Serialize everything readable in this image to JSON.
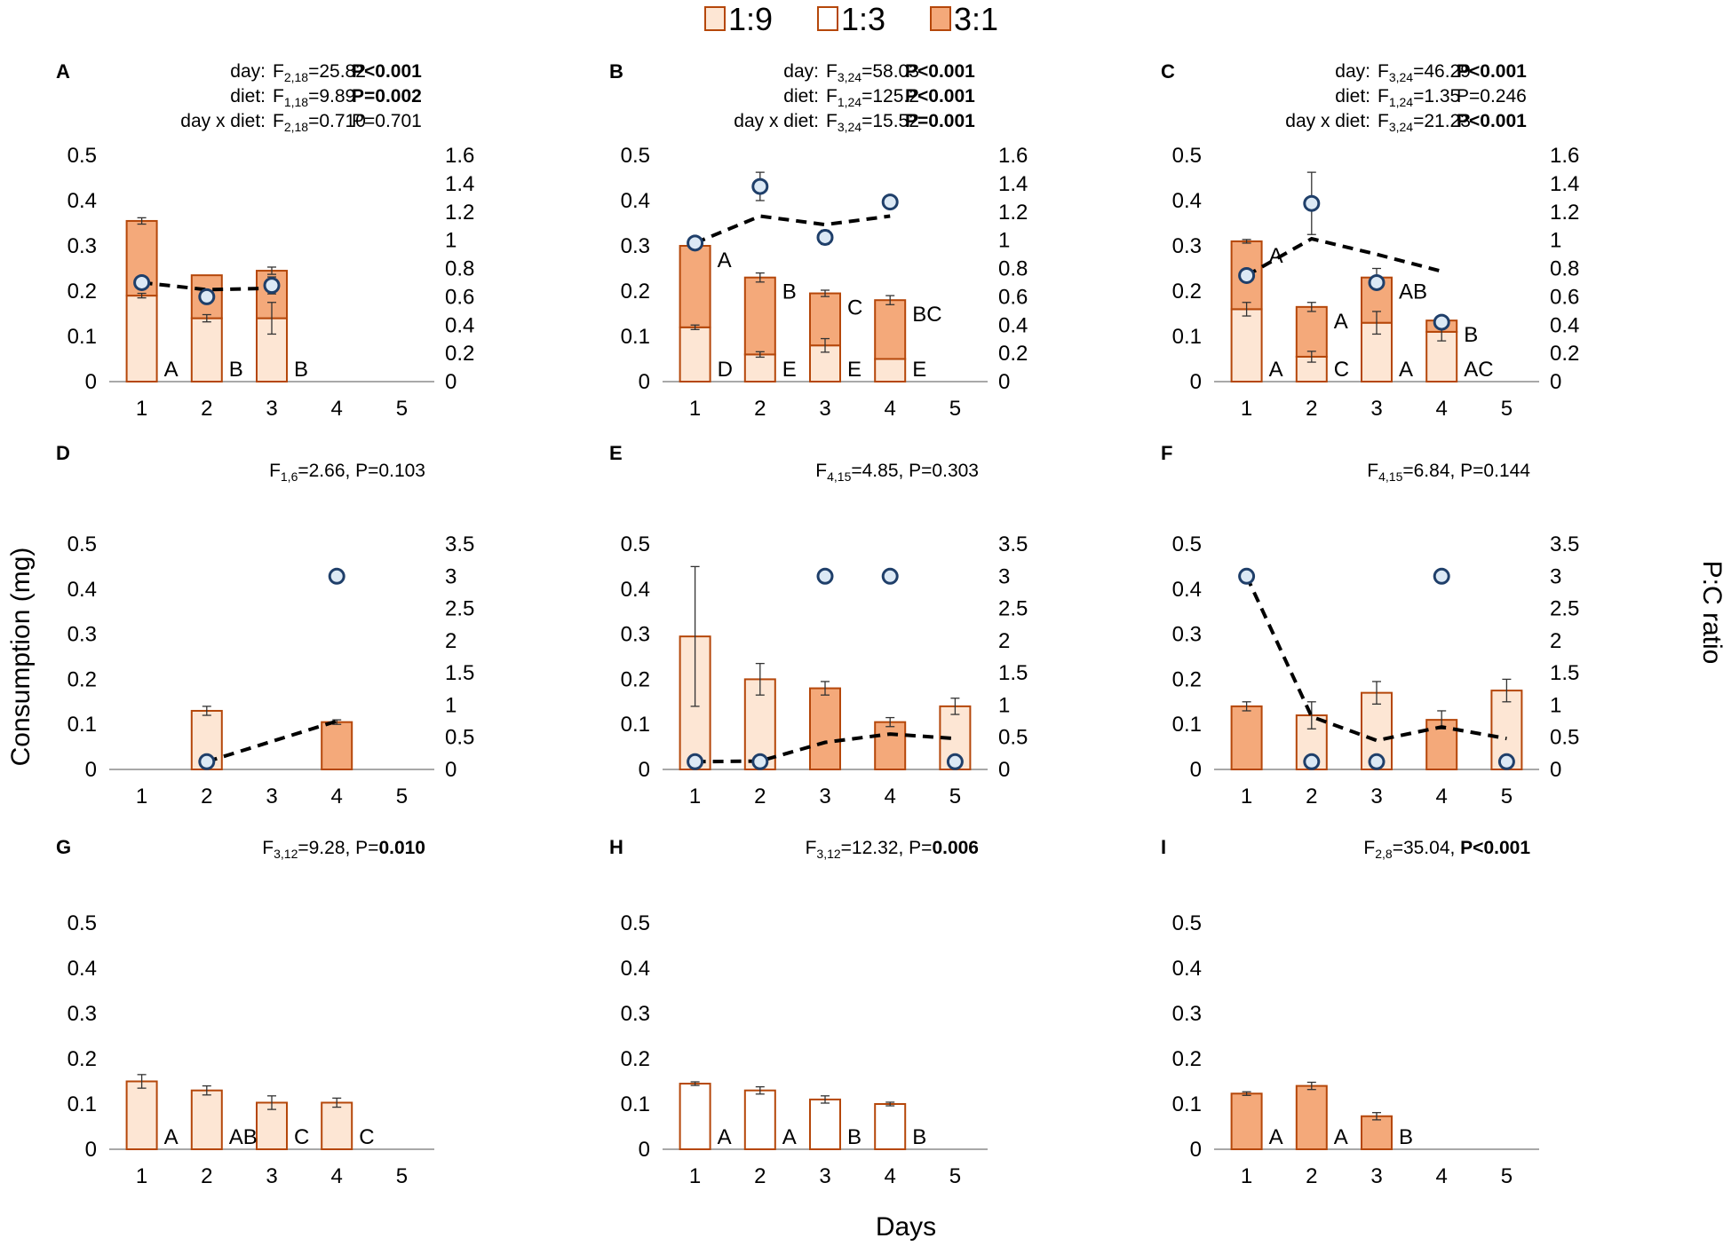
{
  "figure": {
    "legend": [
      {
        "label": "1:9",
        "fill": "#fde6d4"
      },
      {
        "label": "1:3",
        "fill": "#ffffff"
      },
      {
        "label": "3:1",
        "fill": "#f4a97a"
      }
    ],
    "y_axis_title": "Consumption  (mg)",
    "y2_axis_title": "P:C ratio",
    "x_axis_title": "Days",
    "colors": {
      "edge": "#b5470a",
      "line": "#000000",
      "marker_fill": "#dce9f5",
      "marker_edge": "#1f3f6a"
    }
  },
  "chart_data": [
    {
      "panel": "A",
      "type": "stacked-bar+line",
      "categories": [
        "1",
        "2",
        "3",
        "4",
        "5"
      ],
      "ylim": [
        0,
        0.5
      ],
      "yticks": [
        "0",
        "0.1",
        "0.2",
        "0.3",
        "0.4",
        "0.5"
      ],
      "y2lim": [
        0,
        1.6
      ],
      "y2ticks": [
        "0",
        "0.2",
        "0.4",
        "0.6",
        "0.8",
        "1",
        "1.2",
        "1.4",
        "1.6"
      ],
      "series": [
        {
          "name": "1:9",
          "values": [
            0.19,
            0.14,
            0.14,
            null,
            null
          ],
          "errors": [
            0.005,
            0.008,
            0.035,
            null,
            null
          ],
          "fill": "#fde6d4"
        },
        {
          "name": "3:1",
          "values": [
            0.165,
            0.095,
            0.105,
            null,
            null
          ],
          "errors": [
            0.007,
            0,
            0.008,
            null,
            null
          ],
          "fill": "#f4a97a"
        }
      ],
      "bar_letters": [
        [
          "A",
          "B",
          "B",
          null,
          null
        ]
      ],
      "pc_ratio": {
        "line": [
          0.7,
          0.65,
          0.66,
          null,
          null
        ],
        "points": [
          0.7,
          0.6,
          0.68,
          null,
          null
        ],
        "errors": [
          0,
          0,
          0.06,
          null,
          null
        ]
      },
      "stats": [
        {
          "label": "day:",
          "F": "F",
          "sub": "2,18",
          "value": "=25.82",
          "p": "P<0.001",
          "bold": true
        },
        {
          "label": "diet:",
          "F": "F",
          "sub": "1,18",
          "value": "=9.89",
          "p": "P=0.002",
          "bold": true
        },
        {
          "label": "day x diet:",
          "F": "F",
          "sub": "2,18",
          "value": "=0.710",
          "p": "P=0.701",
          "bold": false
        }
      ]
    },
    {
      "panel": "B",
      "type": "stacked-bar+line",
      "categories": [
        "1",
        "2",
        "3",
        "4",
        "5"
      ],
      "ylim": [
        0,
        0.5
      ],
      "yticks": [
        "0",
        "0.1",
        "0.2",
        "0.3",
        "0.4",
        "0.5"
      ],
      "y2lim": [
        0,
        1.6
      ],
      "y2ticks": [
        "0",
        "0.2",
        "0.4",
        "0.6",
        "0.8",
        "1",
        "1.2",
        "1.4",
        "1.6"
      ],
      "series": [
        {
          "name": "1:9",
          "values": [
            0.12,
            0.06,
            0.08,
            0.05,
            null
          ],
          "errors": [
            0.005,
            0.006,
            0.015,
            0,
            null
          ],
          "fill": "#fde6d4"
        },
        {
          "name": "3:1",
          "values": [
            0.18,
            0.17,
            0.115,
            0.13,
            null
          ],
          "errors": [
            0,
            0.01,
            0.007,
            0.01,
            null
          ],
          "fill": "#f4a97a"
        }
      ],
      "bar_letters": [
        [
          "D",
          "E",
          "E",
          "E",
          null
        ],
        [
          "A",
          "B",
          "C",
          "BC",
          null
        ]
      ],
      "pc_ratio": {
        "line": [
          0.98,
          1.17,
          1.11,
          1.17,
          null
        ],
        "points": [
          0.98,
          1.38,
          1.02,
          1.27,
          null
        ],
        "errors": [
          0,
          0.1,
          0.05,
          0,
          null
        ]
      },
      "stats": [
        {
          "label": "day:",
          "F": "F",
          "sub": "3,24",
          "value": "=58.03",
          "p": "P<0.001",
          "bold": true
        },
        {
          "label": "diet:",
          "F": "F",
          "sub": "1,24",
          "value": "=125.2",
          "p": "P<0.001",
          "bold": true
        },
        {
          "label": "day x diet:",
          "F": "F",
          "sub": "3,24",
          "value": "=15.52",
          "p": "P=0.001",
          "bold": true
        }
      ]
    },
    {
      "panel": "C",
      "type": "stacked-bar+line",
      "categories": [
        "1",
        "2",
        "3",
        "4",
        "5"
      ],
      "ylim": [
        0,
        0.5
      ],
      "yticks": [
        "0",
        "0.1",
        "0.2",
        "0.3",
        "0.4",
        "0.5"
      ],
      "y2lim": [
        0,
        1.6
      ],
      "y2ticks": [
        "0",
        "0.2",
        "0.4",
        "0.6",
        "0.8",
        "1",
        "1.2",
        "1.4",
        "1.6"
      ],
      "series": [
        {
          "name": "1:9",
          "values": [
            0.16,
            0.055,
            0.13,
            0.11,
            null
          ],
          "errors": [
            0.015,
            0.012,
            0.025,
            0.02,
            null
          ],
          "fill": "#fde6d4"
        },
        {
          "name": "3:1",
          "values": [
            0.15,
            0.11,
            0.1,
            0.025,
            null
          ],
          "errors": [
            0.004,
            0.01,
            0.02,
            0.005,
            null
          ],
          "fill": "#f4a97a"
        }
      ],
      "bar_letters": [
        [
          "A",
          "C",
          "A",
          "AC",
          null
        ],
        [
          "A",
          "A",
          "AB",
          "B",
          null
        ]
      ],
      "pc_ratio": {
        "line": [
          0.75,
          1.01,
          0.9,
          0.78,
          null
        ],
        "points": [
          0.75,
          1.26,
          0.7,
          0.42,
          null
        ],
        "errors": [
          0,
          0.22,
          0,
          0,
          null
        ]
      },
      "stats": [
        {
          "label": "day:",
          "F": "F",
          "sub": "3,24",
          "value": "=46.29",
          "p": "P<0.001",
          "bold": true
        },
        {
          "label": "diet:",
          "F": "F",
          "sub": "1,24",
          "value": "=1.35",
          "p": "P=0.246",
          "bold": false
        },
        {
          "label": "day x diet:",
          "F": "F",
          "sub": "3,24",
          "value": "=21.23",
          "p": "P<0.001",
          "bold": true
        }
      ]
    },
    {
      "panel": "D",
      "type": "bar+line",
      "categories": [
        "1",
        "2",
        "3",
        "4",
        "5"
      ],
      "ylim": [
        0,
        0.5
      ],
      "yticks": [
        "0",
        "0.1",
        "0.2",
        "0.3",
        "0.4",
        "0.5"
      ],
      "y2lim": [
        0,
        3.5
      ],
      "y2ticks": [
        "0",
        "0.5",
        "1",
        "1.5",
        "2",
        "2.5",
        "3",
        "3.5"
      ],
      "bars": [
        {
          "value": null
        },
        {
          "value": 0.13,
          "error": 0.01,
          "fill": "#fde6d4"
        },
        {
          "value": null
        },
        {
          "value": 0.105,
          "error": 0.005,
          "fill": "#f4a97a"
        },
        {
          "value": null
        }
      ],
      "pc_ratio": {
        "line": [
          null,
          0.12,
          null,
          0.75,
          null
        ],
        "points": [
          null,
          0.12,
          null,
          3.0,
          null
        ],
        "errors": [
          null,
          0,
          null,
          0,
          null
        ]
      },
      "stats": [
        {
          "F": "F",
          "sub": "1,6",
          "value": "=2.66, P=0.103",
          "p": "",
          "bold": false
        }
      ]
    },
    {
      "panel": "E",
      "type": "bar+line",
      "categories": [
        "1",
        "2",
        "3",
        "4",
        "5"
      ],
      "ylim": [
        0,
        0.5
      ],
      "yticks": [
        "0",
        "0.1",
        "0.2",
        "0.3",
        "0.4",
        "0.5"
      ],
      "y2lim": [
        0,
        3.5
      ],
      "y2ticks": [
        "0",
        "0.5",
        "1",
        "1.5",
        "2",
        "2.5",
        "3",
        "3.5"
      ],
      "bars": [
        {
          "value": 0.295,
          "error": 0.155,
          "fill": "#fde6d4"
        },
        {
          "value": 0.2,
          "error": 0.035,
          "fill": "#fde6d4"
        },
        {
          "value": 0.18,
          "error": 0.015,
          "fill": "#f4a97a"
        },
        {
          "value": 0.105,
          "error": 0.01,
          "fill": "#f4a97a"
        },
        {
          "value": 0.14,
          "error": 0.018,
          "fill": "#fde6d4"
        }
      ],
      "pc_ratio": {
        "line": [
          0.12,
          0.13,
          0.42,
          0.55,
          0.48
        ],
        "points": [
          0.12,
          0.12,
          3.0,
          3.0,
          0.12
        ],
        "errors": [
          0,
          0,
          0,
          0,
          0
        ]
      },
      "stats": [
        {
          "F": "F",
          "sub": "4,15",
          "value": "=4.85, P=0.303",
          "p": "",
          "bold": false
        }
      ]
    },
    {
      "panel": "F",
      "type": "bar+line",
      "categories": [
        "1",
        "2",
        "3",
        "4",
        "5"
      ],
      "ylim": [
        0,
        0.5
      ],
      "yticks": [
        "0",
        "0.1",
        "0.2",
        "0.3",
        "0.4",
        "0.5"
      ],
      "y2lim": [
        0,
        3.5
      ],
      "y2ticks": [
        "0",
        "0.5",
        "1",
        "1.5",
        "2",
        "2.5",
        "3",
        "3.5"
      ],
      "bars": [
        {
          "value": 0.14,
          "error": 0.01,
          "fill": "#f4a97a"
        },
        {
          "value": 0.12,
          "error": 0.03,
          "fill": "#fde6d4"
        },
        {
          "value": 0.17,
          "error": 0.025,
          "fill": "#fde6d4"
        },
        {
          "value": 0.11,
          "error": 0.02,
          "fill": "#f4a97a"
        },
        {
          "value": 0.175,
          "error": 0.025,
          "fill": "#fde6d4"
        }
      ],
      "pc_ratio": {
        "line": [
          3.0,
          0.82,
          0.45,
          0.66,
          0.48
        ],
        "points": [
          3.0,
          0.12,
          0.12,
          3.0,
          0.12
        ],
        "errors": [
          0,
          0,
          0,
          0,
          0
        ]
      },
      "stats": [
        {
          "F": "F",
          "sub": "4,15",
          "value": "=6.84, P=0.144",
          "p": "",
          "bold": false
        }
      ]
    },
    {
      "panel": "G",
      "type": "bar",
      "categories": [
        "1",
        "2",
        "3",
        "4",
        "5"
      ],
      "ylim": [
        0,
        0.5
      ],
      "yticks": [
        "0",
        "0.1",
        "0.2",
        "0.3",
        "0.4",
        "0.5"
      ],
      "bars": [
        {
          "value": 0.15,
          "error": 0.015,
          "fill": "#fde6d4"
        },
        {
          "value": 0.13,
          "error": 0.01,
          "fill": "#fde6d4"
        },
        {
          "value": 0.103,
          "error": 0.015,
          "fill": "#fde6d4"
        },
        {
          "value": 0.103,
          "error": 0.01,
          "fill": "#fde6d4"
        },
        {
          "value": null
        }
      ],
      "bar_letters": [
        [
          "A",
          "AB",
          "C",
          "C",
          null
        ]
      ],
      "stats": [
        {
          "F": "F",
          "sub": "3,12",
          "value": "=9.28, P=",
          "p": "0.010",
          "bold": true
        }
      ]
    },
    {
      "panel": "H",
      "type": "bar",
      "categories": [
        "1",
        "2",
        "3",
        "4",
        "5"
      ],
      "ylim": [
        0,
        0.5
      ],
      "yticks": [
        "0",
        "0.1",
        "0.2",
        "0.3",
        "0.4",
        "0.5"
      ],
      "bars": [
        {
          "value": 0.145,
          "error": 0.004,
          "fill": "#ffffff"
        },
        {
          "value": 0.13,
          "error": 0.008,
          "fill": "#ffffff"
        },
        {
          "value": 0.11,
          "error": 0.008,
          "fill": "#ffffff"
        },
        {
          "value": 0.1,
          "error": 0.004,
          "fill": "#ffffff"
        },
        {
          "value": null
        }
      ],
      "bar_letters": [
        [
          "A",
          "A",
          "B",
          "B",
          null
        ]
      ],
      "stats": [
        {
          "F": "F",
          "sub": "3,12",
          "value": "=12.32, P=",
          "p": "0.006",
          "bold": true
        }
      ]
    },
    {
      "panel": "I",
      "type": "bar",
      "categories": [
        "1",
        "2",
        "3",
        "4",
        "5"
      ],
      "ylim": [
        0,
        0.5
      ],
      "yticks": [
        "0",
        "0.1",
        "0.2",
        "0.3",
        "0.4",
        "0.5"
      ],
      "bars": [
        {
          "value": 0.123,
          "error": 0.004,
          "fill": "#f4a97a"
        },
        {
          "value": 0.14,
          "error": 0.008,
          "fill": "#f4a97a"
        },
        {
          "value": 0.073,
          "error": 0.008,
          "fill": "#f4a97a"
        },
        {
          "value": null
        },
        {
          "value": null
        }
      ],
      "bar_letters": [
        [
          "A",
          "A",
          "B",
          null,
          null
        ]
      ],
      "stats": [
        {
          "F": "F",
          "sub": "2,8",
          "value": "=35.04, ",
          "p": "P<0.001",
          "bold": true
        }
      ]
    }
  ]
}
